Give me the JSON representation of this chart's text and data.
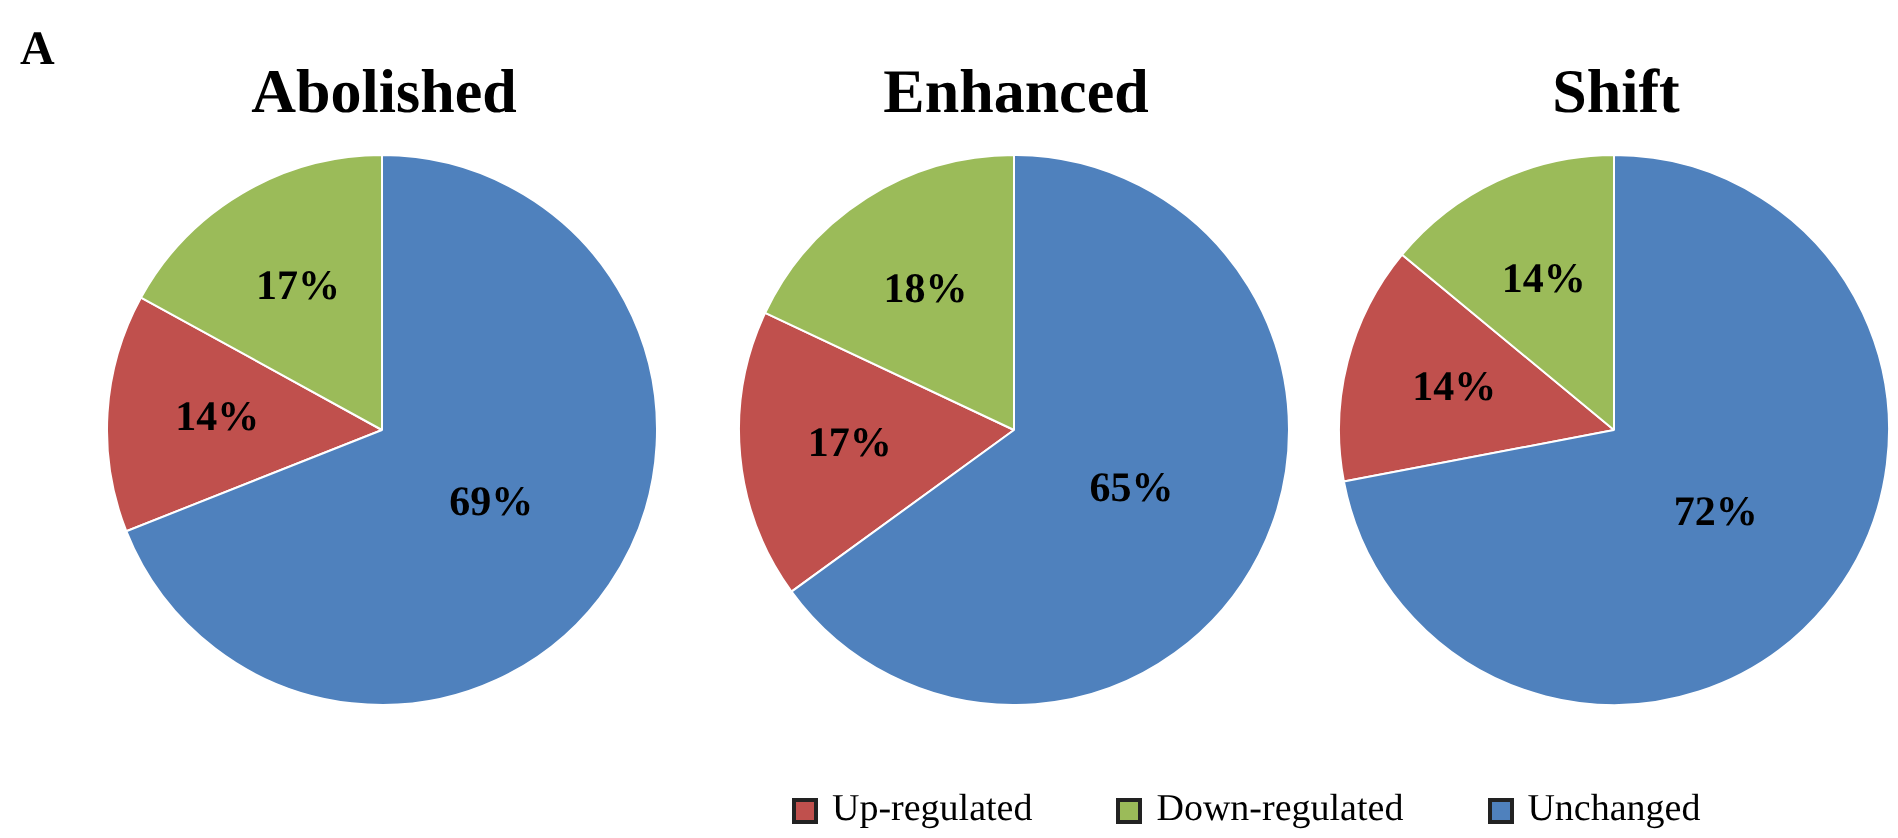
{
  "chart_data": [
    {
      "type": "pie",
      "title": "Abolished",
      "annotations": [
        "A"
      ],
      "categories": [
        "Up-regulated",
        "Down-regulated",
        "Unchanged"
      ],
      "values": [
        14,
        17,
        69
      ],
      "colors": [
        "#c0504d",
        "#9bbb59",
        "#4f81bd"
      ],
      "value_labels": [
        "14%",
        "17%",
        "69%"
      ],
      "legend": "bottom"
    },
    {
      "type": "pie",
      "title": "Enhanced",
      "categories": [
        null,
        null,
        null
      ],
      "values": [
        17,
        18,
        65
      ],
      "colors": [
        "#c0504d",
        "#9bbb59",
        "#4f81bd"
      ],
      "value_labels": [
        "17%",
        "18%",
        "65%"
      ]
    },
    {
      "type": "pie",
      "title": "Shift",
      "categories": [
        null,
        null,
        null
      ],
      "values": [
        14,
        14,
        72
      ],
      "colors": [
        "#c0504d",
        "#9bbb59",
        "#4f81bd"
      ],
      "value_labels": [
        "14%",
        "14%",
        "72%"
      ]
    }
  ]
}
